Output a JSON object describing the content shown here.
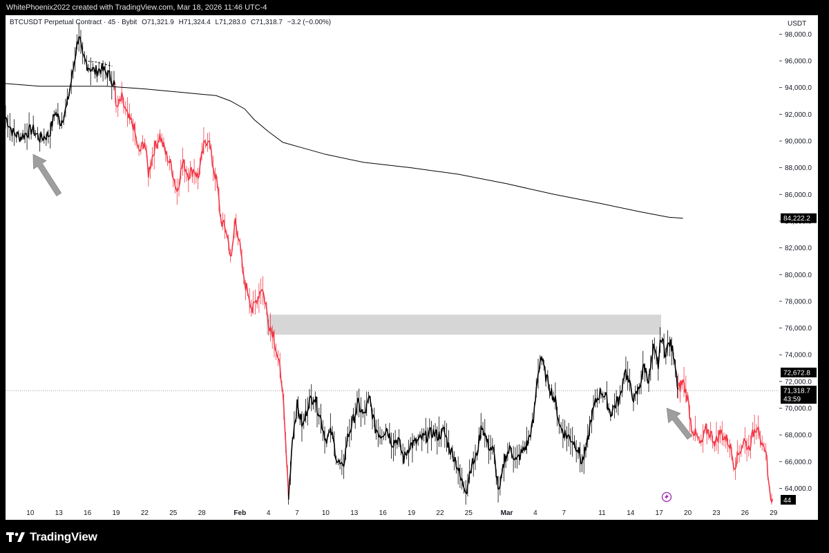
{
  "header": {
    "attribution": "WhitePhoenix2022 created with TradingView.com, Mar 18, 2026 11:46 UTC-4"
  },
  "legend": {
    "symbol": "BTCUSDT Perpetual Contract · 45 · Bybit",
    "open": "O71,321.9",
    "high": "H71,324.4",
    "low": "L71,283.0",
    "close": "C71,318.7",
    "change": "−3.2 (−0.00%)"
  },
  "axis": {
    "unit": "USDT"
  },
  "footer": {
    "brand": "TradingView"
  },
  "badges": {
    "ma_value": "84,222.2",
    "level_value": "72,672.8",
    "last_price": "71,318.7",
    "countdown": "43:59",
    "bottom": "44"
  },
  "colors": {
    "up": "#000000",
    "down": "#f23645",
    "ma": "#000000",
    "zone": "#d6d6d6",
    "arrow": "#9e9e9e",
    "accent": "#9c27b0"
  },
  "chart_data": {
    "type": "line",
    "title": "BTCUSDT Perpetual Contract · 45 · Bybit",
    "ylabel": "USDT",
    "ylim": [
      63000,
      99000
    ],
    "y_ticks": [
      64000,
      66000,
      68000,
      70000,
      72000,
      74000,
      76000,
      78000,
      80000,
      82000,
      84000,
      86000,
      88000,
      90000,
      92000,
      94000,
      96000,
      98000
    ],
    "y_tick_labels": [
      "64,000.0",
      "66,000.0",
      "68,000.0",
      "70,000.0",
      "72,000.0",
      "74,000.0",
      "76,000.0",
      "78,000.0",
      "80,000.0",
      "82,000.0",
      "84,000.0",
      "86,000.0",
      "88,000.0",
      "90,000.0",
      "92,000.0",
      "94,000.0",
      "96,000.0",
      "98,000.0"
    ],
    "x_ticks": [
      {
        "label": "10",
        "day": 10
      },
      {
        "label": "13",
        "day": 13
      },
      {
        "label": "16",
        "day": 16
      },
      {
        "label": "19",
        "day": 19
      },
      {
        "label": "22",
        "day": 22
      },
      {
        "label": "25",
        "day": 25
      },
      {
        "label": "28",
        "day": 28
      },
      {
        "label": "Feb",
        "day": 32
      },
      {
        "label": "4",
        "day": 35
      },
      {
        "label": "7",
        "day": 38
      },
      {
        "label": "10",
        "day": 41
      },
      {
        "label": "13",
        "day": 44
      },
      {
        "label": "16",
        "day": 47
      },
      {
        "label": "19",
        "day": 50
      },
      {
        "label": "22",
        "day": 53
      },
      {
        "label": "25",
        "day": 56
      },
      {
        "label": "Mar",
        "day": 60
      },
      {
        "label": "4",
        "day": 63
      },
      {
        "label": "7",
        "day": 66
      },
      {
        "label": "11",
        "day": 70
      },
      {
        "label": "14",
        "day": 73
      },
      {
        "label": "17",
        "day": 76
      },
      {
        "label": "20",
        "day": 79
      },
      {
        "label": "23",
        "day": 82
      },
      {
        "label": "26",
        "day": 85
      },
      {
        "label": "29",
        "day": 88
      }
    ],
    "x_range_days": [
      7.4,
      88.6
    ],
    "series": [
      {
        "segment": "early",
        "values": [
          [
            7.4,
            91800
          ],
          [
            8.2,
            90600
          ],
          [
            9,
            90300
          ],
          [
            10.2,
            90900
          ],
          [
            11,
            90200
          ],
          [
            12,
            90500
          ],
          [
            12.6,
            92200
          ],
          [
            13.2,
            91400
          ],
          [
            13.8,
            92500
          ],
          [
            14.4,
            94900
          ],
          [
            14.8,
            96800
          ],
          [
            15.1,
            98000
          ],
          [
            15.5,
            96200
          ],
          [
            16.1,
            95600
          ],
          [
            16.8,
            95200
          ],
          [
            17.4,
            95400
          ],
          [
            18.2,
            95000
          ],
          [
            18.9,
            94200
          ]
        ]
      },
      {
        "segment": "decline",
        "values": [
          [
            18.9,
            94200
          ],
          [
            19,
            92300
          ],
          [
            19.6,
            93200
          ],
          [
            20.2,
            91800
          ],
          [
            20.8,
            91200
          ],
          [
            21.4,
            89100
          ],
          [
            22,
            90000
          ],
          [
            22.4,
            87600
          ],
          [
            23,
            89400
          ],
          [
            23.6,
            90400
          ],
          [
            24.2,
            89100
          ],
          [
            24.8,
            88100
          ],
          [
            25.4,
            86200
          ],
          [
            26,
            88400
          ],
          [
            26.6,
            87500
          ],
          [
            27.2,
            87900
          ],
          [
            27.6,
            87200
          ],
          [
            28.2,
            89600
          ],
          [
            28.7,
            90300
          ],
          [
            29.1,
            88400
          ],
          [
            29.6,
            86800
          ],
          [
            30,
            84100
          ],
          [
            30.6,
            83200
          ],
          [
            31.1,
            81100
          ],
          [
            31.5,
            84100
          ],
          [
            31.9,
            82700
          ],
          [
            32.4,
            79600
          ],
          [
            32.9,
            78600
          ],
          [
            33.3,
            77300
          ],
          [
            33.8,
            78200
          ],
          [
            34.3,
            79100
          ],
          [
            34.7,
            77800
          ],
          [
            35,
            76400
          ],
          [
            35.5,
            75600
          ],
          [
            36,
            73600
          ],
          [
            36.4,
            72100
          ],
          [
            36.8,
            67200
          ],
          [
            37.1,
            63300
          ]
        ]
      },
      {
        "segment": "range",
        "values": [
          [
            37.1,
            63300
          ],
          [
            37.5,
            67700
          ],
          [
            38,
            70200
          ],
          [
            38.6,
            68600
          ],
          [
            39.2,
            70400
          ],
          [
            39.8,
            70900
          ],
          [
            40.4,
            69400
          ],
          [
            41,
            67700
          ],
          [
            41.6,
            68200
          ],
          [
            42.2,
            66100
          ],
          [
            42.8,
            65400
          ],
          [
            43.3,
            67800
          ],
          [
            43.8,
            68900
          ],
          [
            44.4,
            70300
          ],
          [
            45,
            69400
          ],
          [
            45.6,
            70700
          ],
          [
            46.2,
            68500
          ],
          [
            46.8,
            68000
          ],
          [
            47.4,
            68500
          ],
          [
            48,
            67400
          ],
          [
            48.6,
            67700
          ],
          [
            49.2,
            66200
          ],
          [
            49.8,
            67200
          ],
          [
            50.4,
            67400
          ],
          [
            51,
            67700
          ],
          [
            51.6,
            67900
          ],
          [
            52.2,
            68200
          ],
          [
            52.8,
            67900
          ],
          [
            53.4,
            68300
          ],
          [
            54,
            67000
          ],
          [
            54.6,
            66200
          ],
          [
            55.2,
            64600
          ],
          [
            55.8,
            63900
          ],
          [
            56.2,
            65600
          ],
          [
            56.8,
            66300
          ],
          [
            57.4,
            68800
          ],
          [
            58,
            67300
          ],
          [
            58.6,
            66800
          ],
          [
            59.2,
            63600
          ],
          [
            59.8,
            66300
          ],
          [
            60.4,
            67000
          ],
          [
            61,
            66000
          ],
          [
            61.6,
            66700
          ],
          [
            62.2,
            67400
          ],
          [
            62.8,
            69000
          ],
          [
            63.2,
            72200
          ],
          [
            63.6,
            73900
          ],
          [
            64.1,
            72400
          ],
          [
            64.6,
            71400
          ],
          [
            65.1,
            70500
          ],
          [
            65.6,
            68600
          ],
          [
            66.2,
            68000
          ],
          [
            66.8,
            67700
          ],
          [
            67.4,
            67100
          ],
          [
            67.9,
            65900
          ],
          [
            68.4,
            67100
          ],
          [
            68.9,
            69400
          ],
          [
            69.4,
            70600
          ],
          [
            69.9,
            71300
          ],
          [
            70.4,
            70800
          ],
          [
            70.9,
            69600
          ],
          [
            71.4,
            70300
          ],
          [
            71.9,
            70700
          ],
          [
            72.4,
            73000
          ],
          [
            72.9,
            71700
          ],
          [
            73.4,
            70600
          ],
          [
            73.9,
            71500
          ],
          [
            74.4,
            73200
          ],
          [
            74.9,
            72100
          ],
          [
            75.4,
            74400
          ],
          [
            75.9,
            73200
          ],
          [
            76.2,
            75400
          ],
          [
            76.6,
            74200
          ],
          [
            77.1,
            74900
          ],
          [
            77.6,
            73900
          ],
          [
            78,
            71400
          ]
        ]
      },
      {
        "segment": "final_drop",
        "values": [
          [
            78,
            71400
          ],
          [
            78.5,
            72000
          ],
          [
            79,
            70700
          ],
          [
            79.4,
            68600
          ],
          [
            79.9,
            67900
          ],
          [
            80.4,
            67200
          ],
          [
            80.9,
            68400
          ],
          [
            81.4,
            68100
          ],
          [
            81.9,
            67400
          ],
          [
            82.4,
            68200
          ],
          [
            82.9,
            67800
          ],
          [
            83.4,
            67300
          ],
          [
            83.9,
            65700
          ],
          [
            84.4,
            66700
          ],
          [
            84.9,
            67600
          ],
          [
            85.4,
            67000
          ],
          [
            85.9,
            68200
          ],
          [
            86.4,
            68900
          ],
          [
            86.8,
            67000
          ],
          [
            87.3,
            66200
          ],
          [
            87.6,
            63600
          ],
          [
            87.9,
            63200
          ]
        ]
      },
      {
        "name": "MA",
        "segment": "moving_average",
        "values": [
          [
            7.4,
            94300
          ],
          [
            11,
            94100
          ],
          [
            14,
            94100
          ],
          [
            18,
            94100
          ],
          [
            22,
            93900
          ],
          [
            25,
            93700
          ],
          [
            28,
            93500
          ],
          [
            29.5,
            93400
          ],
          [
            31,
            93000
          ],
          [
            32.5,
            92400
          ],
          [
            33.5,
            91600
          ],
          [
            34.5,
            91000
          ],
          [
            35,
            90700
          ],
          [
            36.5,
            89900
          ],
          [
            38.5,
            89500
          ],
          [
            41,
            89000
          ],
          [
            45,
            88400
          ],
          [
            50,
            88000
          ],
          [
            55,
            87500
          ],
          [
            60,
            86800
          ],
          [
            65,
            86000
          ],
          [
            70,
            85300
          ],
          [
            74,
            84700
          ],
          [
            77,
            84300
          ],
          [
            78.5,
            84222
          ]
        ]
      }
    ],
    "zone": {
      "y_from": 75500,
      "y_to": 77000,
      "x_from": 34.8,
      "x_to": 76.2
    },
    "dashed_bracket": [
      [
        15.7,
        96000
      ],
      [
        17,
        95900
      ],
      [
        18.6,
        95600
      ]
    ],
    "hline": 71318.7,
    "arrows": [
      {
        "from": [
          13,
          86000
        ],
        "to": [
          10.3,
          89000
        ]
      },
      {
        "from": [
          79.2,
          67800
        ],
        "to": [
          76.8,
          70000
        ]
      }
    ]
  }
}
